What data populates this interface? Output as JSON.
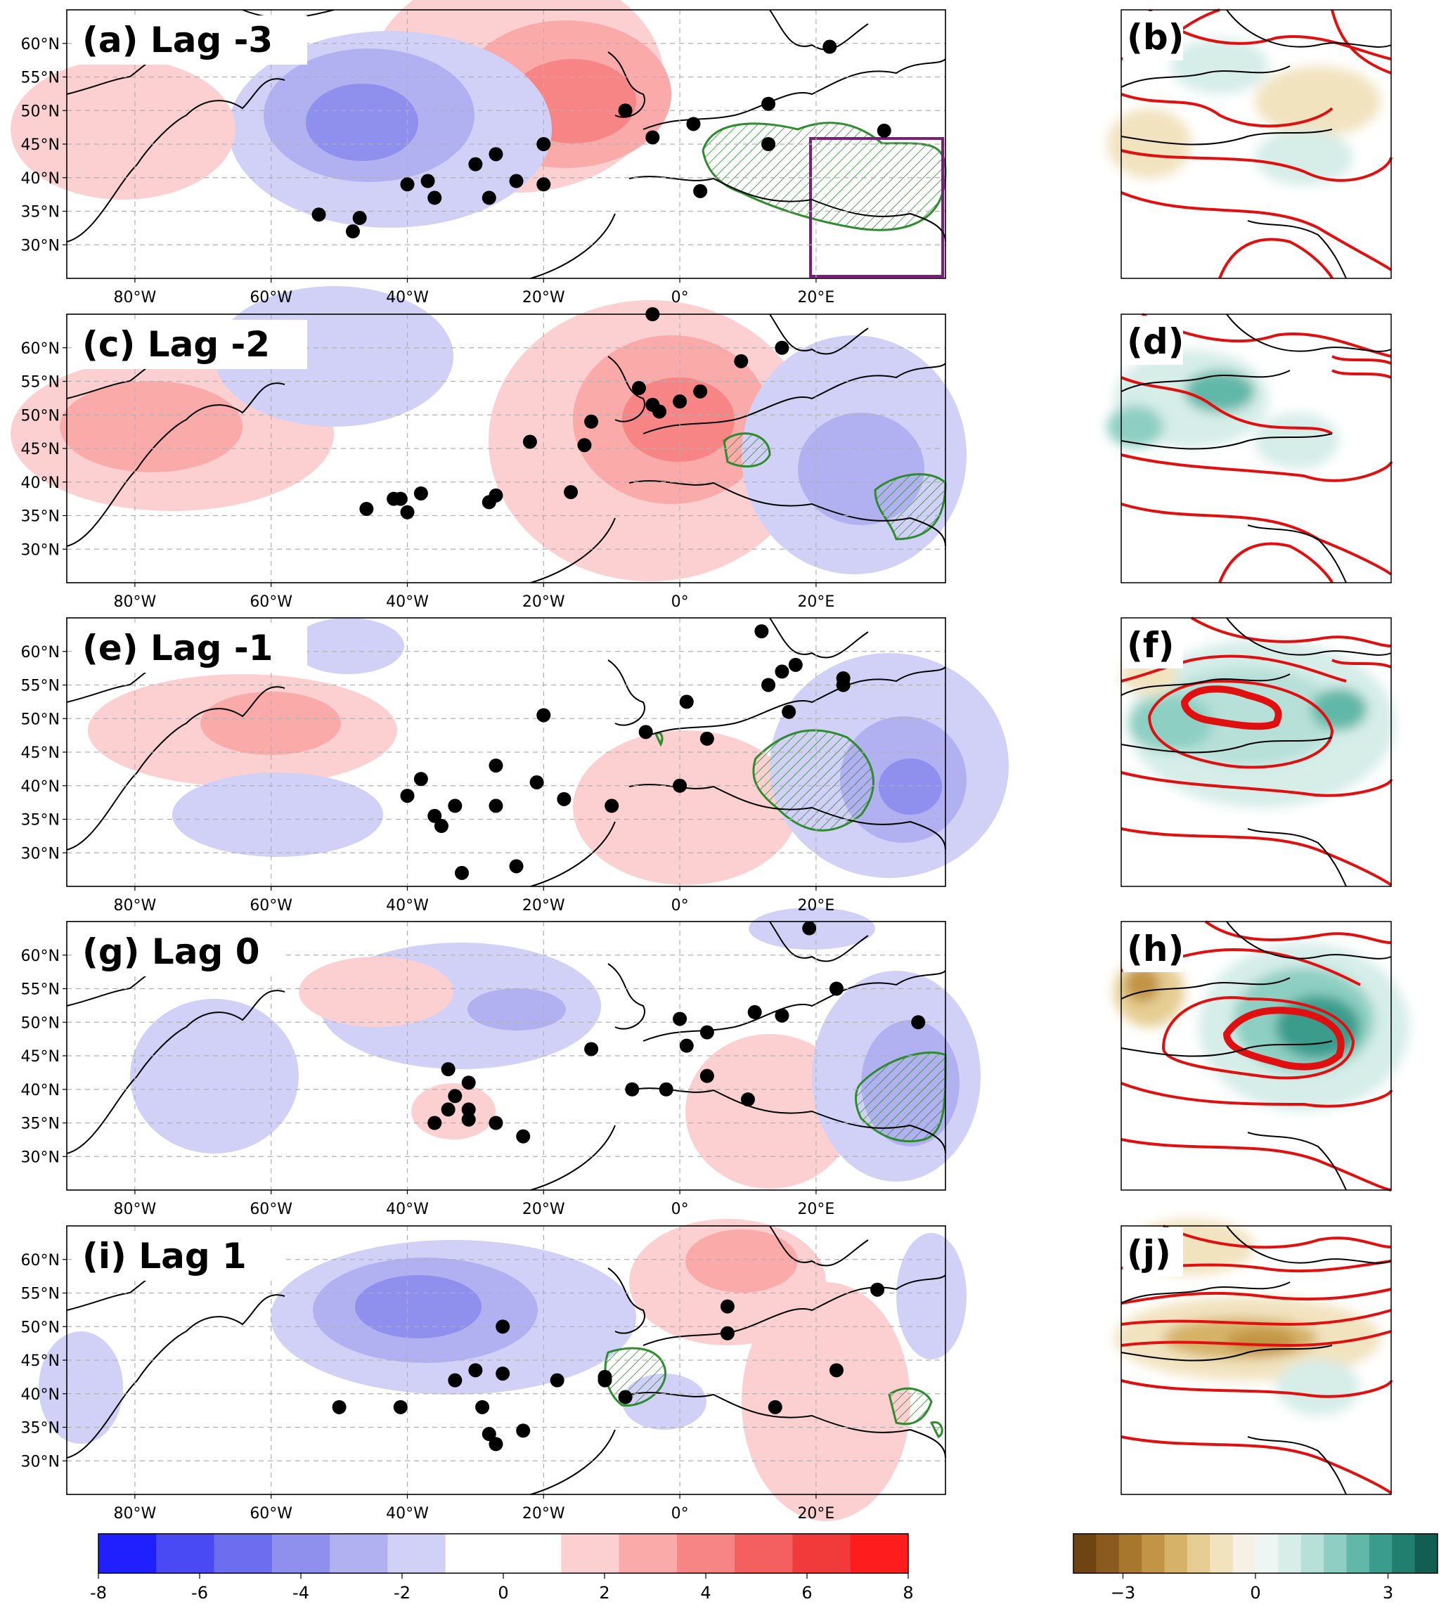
{
  "figure": {
    "main_panels": [
      {
        "id": "a",
        "label": "(a) Lag -3"
      },
      {
        "id": "c",
        "label": "(c) Lag -2"
      },
      {
        "id": "e",
        "label": "(e) Lag -1"
      },
      {
        "id": "g",
        "label": "(g) Lag 0"
      },
      {
        "id": "i",
        "label": "(i) Lag 1"
      }
    ],
    "side_panels": [
      {
        "id": "b",
        "label": "(b)"
      },
      {
        "id": "d",
        "label": "(d)"
      },
      {
        "id": "f",
        "label": "(f)"
      },
      {
        "id": "h",
        "label": "(h)"
      },
      {
        "id": "j",
        "label": "(j)"
      }
    ],
    "lat_ticks": [
      "60°N",
      "55°N",
      "50°N",
      "45°N",
      "40°N",
      "35°N",
      "30°N"
    ],
    "lon_ticks": [
      "80°W",
      "60°W",
      "40°W",
      "20°W",
      "0°",
      "20°E"
    ],
    "colorbar_main": {
      "ticks": [
        "-8",
        "-6",
        "-4",
        "-2",
        "0",
        "2",
        "4",
        "6",
        "8"
      ],
      "range": [
        -8,
        8
      ],
      "colors": [
        "#2020ff",
        "#4a4af5",
        "#6d6df0",
        "#8f8fee",
        "#b1b1f2",
        "#d1d1f8",
        "#ffffff",
        "#ffffff",
        "#fcd0d0",
        "#fbaaaa",
        "#f88585",
        "#f46060",
        "#f13a3a",
        "#ff1c1c"
      ]
    },
    "colorbar_side": {
      "ticks": [
        "−3",
        "0",
        "3"
      ],
      "colors_dry": [
        "#6e4412",
        "#8a5a1e",
        "#a8772e",
        "#c29445",
        "#d6b268",
        "#e6cd93",
        "#f2e3bf",
        "#f7f0e4"
      ],
      "colors_wet": [
        "#eef6f4",
        "#d6ede8",
        "#b6e0d8",
        "#8dcfc2",
        "#62b8a8",
        "#3a9c8c",
        "#217f70",
        "#135e52"
      ]
    },
    "colors": {
      "positive_anomaly": "#f4a5a5",
      "negative_anomaly": "#a5a5f0",
      "significance_hatch": "#2e8b2e",
      "domain_box": "#7b1f7b",
      "contours": "#e01010",
      "events": "#000000"
    },
    "events_per_lag": [
      {
        "lag": "-3",
        "points": [
          [
            -53,
            34.5
          ],
          [
            -48,
            32
          ],
          [
            -47,
            34
          ],
          [
            -40,
            39
          ],
          [
            -37,
            39.5
          ],
          [
            -36,
            37
          ],
          [
            -30,
            42
          ],
          [
            -27,
            43.5
          ],
          [
            -24,
            39.5
          ],
          [
            -28,
            37
          ],
          [
            -20,
            45
          ],
          [
            -20,
            39
          ],
          [
            -8,
            50
          ],
          [
            -4,
            46
          ],
          [
            2,
            48
          ],
          [
            3,
            38
          ],
          [
            13,
            51
          ],
          [
            13,
            45
          ],
          [
            22,
            59.5
          ],
          [
            30,
            47
          ]
        ]
      },
      {
        "lag": "-2",
        "points": [
          [
            -46,
            36
          ],
          [
            -42,
            37.5
          ],
          [
            -41,
            37.5
          ],
          [
            -40,
            35.5
          ],
          [
            -38,
            38.3
          ],
          [
            -28,
            37
          ],
          [
            -27,
            38
          ],
          [
            -22,
            46
          ],
          [
            -16,
            38.5
          ],
          [
            -14,
            45.5
          ],
          [
            -13,
            49
          ],
          [
            -6,
            54
          ],
          [
            -4,
            51.5
          ],
          [
            -3,
            50.5
          ],
          [
            0,
            52
          ],
          [
            3,
            53.5
          ],
          [
            9,
            58
          ],
          [
            15,
            60
          ],
          [
            -4,
            65
          ]
        ]
      },
      {
        "lag": "-1",
        "points": [
          [
            -40,
            38.5
          ],
          [
            -38,
            41
          ],
          [
            -36,
            35.5
          ],
          [
            -35,
            34
          ],
          [
            -33,
            37
          ],
          [
            -32,
            27
          ],
          [
            -27,
            43
          ],
          [
            -27,
            37
          ],
          [
            -24,
            28
          ],
          [
            -21,
            40.5
          ],
          [
            -20,
            50.5
          ],
          [
            -17,
            38
          ],
          [
            -10,
            37
          ],
          [
            -5,
            48
          ],
          [
            0,
            40
          ],
          [
            1,
            52.5
          ],
          [
            4,
            47
          ],
          [
            12,
            63
          ],
          [
            13,
            55
          ],
          [
            15,
            57
          ],
          [
            16,
            51
          ],
          [
            17,
            58
          ],
          [
            24,
            56
          ],
          [
            24,
            55
          ]
        ]
      },
      {
        "lag": "0",
        "points": [
          [
            -36,
            35
          ],
          [
            -34,
            43
          ],
          [
            -34,
            37
          ],
          [
            -33,
            39
          ],
          [
            -31,
            35.5
          ],
          [
            -31,
            41
          ],
          [
            -31,
            37
          ],
          [
            -27,
            35
          ],
          [
            -23,
            33
          ],
          [
            -13,
            46
          ],
          [
            -7,
            40
          ],
          [
            -2,
            40
          ],
          [
            0,
            50.5
          ],
          [
            1,
            46.5
          ],
          [
            4,
            42
          ],
          [
            4,
            48.5
          ],
          [
            10,
            38.5
          ],
          [
            11,
            51.5
          ],
          [
            15,
            51
          ],
          [
            19,
            64
          ],
          [
            23,
            55
          ],
          [
            35,
            50
          ]
        ]
      },
      {
        "lag": "1",
        "points": [
          [
            -50,
            38
          ],
          [
            -41,
            38
          ],
          [
            -33,
            42
          ],
          [
            -30,
            43.5
          ],
          [
            -29,
            38
          ],
          [
            -28,
            34
          ],
          [
            -27,
            32.5
          ],
          [
            -26,
            50
          ],
          [
            -26,
            43
          ],
          [
            -23,
            34.5
          ],
          [
            -18,
            42
          ],
          [
            -11,
            42.5
          ],
          [
            -11,
            42
          ],
          [
            -8,
            39.5
          ],
          [
            7,
            53
          ],
          [
            7,
            49
          ],
          [
            14,
            38
          ],
          [
            23,
            43.5
          ],
          [
            29,
            55.5
          ]
        ]
      }
    ]
  }
}
